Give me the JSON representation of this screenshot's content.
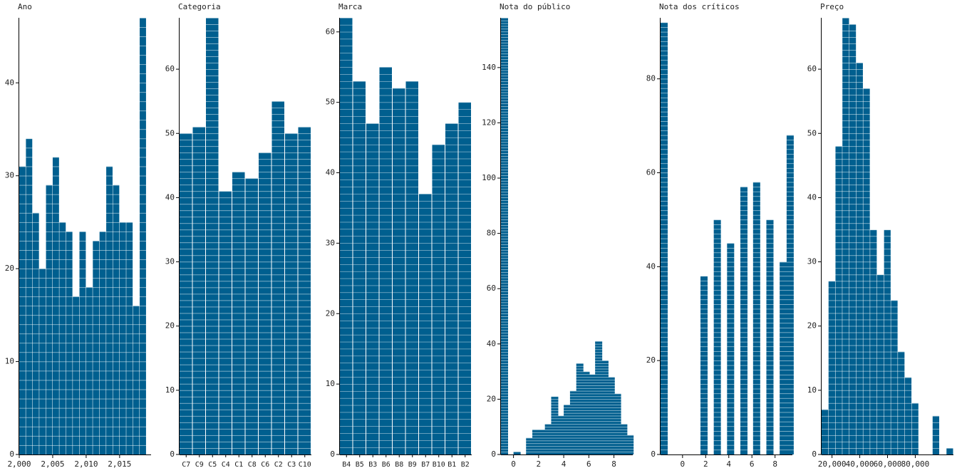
{
  "chart_data": [
    {
      "type": "bar",
      "title": "Ano",
      "color": "#005f8f",
      "x": [
        2000,
        2001,
        2002,
        2003,
        2004,
        2005,
        2006,
        2007,
        2008,
        2009,
        2010,
        2011,
        2012,
        2013,
        2014,
        2015,
        2016,
        2017,
        2018
      ],
      "values": [
        31,
        34,
        26,
        20,
        29,
        32,
        25,
        24,
        17,
        24,
        18,
        23,
        24,
        31,
        29,
        25,
        25,
        16,
        47
      ],
      "xlim": [
        2000,
        2019.7
      ],
      "xticks": [
        {
          "value": 2000,
          "label": "2,000"
        },
        {
          "value": 2005,
          "label": "2,005"
        },
        {
          "value": 2010,
          "label": "2,010"
        },
        {
          "value": 2015,
          "label": "2,015"
        }
      ],
      "ylim": [
        0,
        47
      ],
      "yticks": [
        0,
        10,
        20,
        30,
        40
      ]
    },
    {
      "type": "bar",
      "title": "Categoria",
      "color": "#005f8f",
      "categories": [
        "C7",
        "C9",
        "C5",
        "C4",
        "C1",
        "C8",
        "C6",
        "C2",
        "C3",
        "C10"
      ],
      "values": [
        50,
        51,
        68,
        41,
        44,
        43,
        47,
        55,
        50,
        51
      ],
      "ylim": [
        0,
        68
      ],
      "yticks": [
        0,
        10,
        20,
        30,
        40,
        50,
        60
      ]
    },
    {
      "type": "bar",
      "title": "Marca",
      "color": "#005f8f",
      "categories": [
        "B4",
        "B5",
        "B3",
        "B6",
        "B8",
        "B9",
        "B7",
        "B10",
        "B1",
        "B2"
      ],
      "values": [
        62,
        53,
        47,
        55,
        52,
        53,
        37,
        44,
        47,
        50
      ],
      "ylim": [
        0,
        62
      ],
      "yticks": [
        0,
        10,
        20,
        30,
        40,
        50,
        60
      ]
    },
    {
      "type": "bar",
      "title": "Nota do público",
      "color": "#005f8f",
      "x": [
        -1,
        0,
        1,
        1.5,
        2,
        2.5,
        3,
        3.5,
        4,
        4.5,
        5,
        5.5,
        6,
        6.5,
        7,
        7.5,
        8,
        8.5,
        9
      ],
      "values": [
        158,
        1,
        6,
        9,
        9,
        11,
        21,
        14,
        18,
        23,
        33,
        30,
        29,
        41,
        34,
        28,
        22,
        11,
        7
      ],
      "xlim": [
        -1,
        9.5
      ],
      "xticks": [
        0,
        2,
        4,
        6,
        8
      ],
      "ylim": [
        0,
        158
      ],
      "yticks": [
        0,
        20,
        40,
        60,
        80,
        100,
        120,
        140
      ]
    },
    {
      "type": "bar",
      "title": "Nota dos críticos",
      "color": "#005f8f",
      "x": [
        -1.9,
        1.55,
        2.7,
        3.85,
        5,
        6.1,
        7.25,
        8.4,
        9
      ],
      "values": [
        92,
        38,
        50,
        45,
        57,
        58,
        50,
        41,
        68
      ],
      "xlim": [
        -1.9,
        9.5
      ],
      "xticks": [
        0,
        2,
        4,
        6,
        8
      ],
      "ylim": [
        0,
        93
      ],
      "yticks": [
        0,
        20,
        40,
        60,
        80
      ]
    },
    {
      "type": "bar",
      "title": "Preço",
      "color": "#005f8f",
      "x": [
        12500,
        17500,
        22500,
        27500,
        32500,
        37500,
        42500,
        47500,
        52500,
        57500,
        62500,
        67500,
        72500,
        77500,
        82500,
        87500,
        92500,
        97500,
        102500
      ],
      "values": [
        7,
        27,
        48,
        68,
        67,
        61,
        57,
        35,
        28,
        35,
        24,
        16,
        12,
        8,
        0,
        0,
        6,
        0,
        1
      ],
      "xlim": [
        12500,
        107500
      ],
      "xticks": [
        {
          "value": 20000,
          "label": "20,000"
        },
        {
          "value": 40000,
          "label": "40,000"
        },
        {
          "value": 60000,
          "label": "60,000"
        },
        {
          "value": 80000,
          "label": "80,000"
        }
      ],
      "ylim": [
        0,
        68
      ],
      "yticks": [
        0,
        10,
        20,
        30,
        40,
        50,
        60
      ]
    }
  ]
}
